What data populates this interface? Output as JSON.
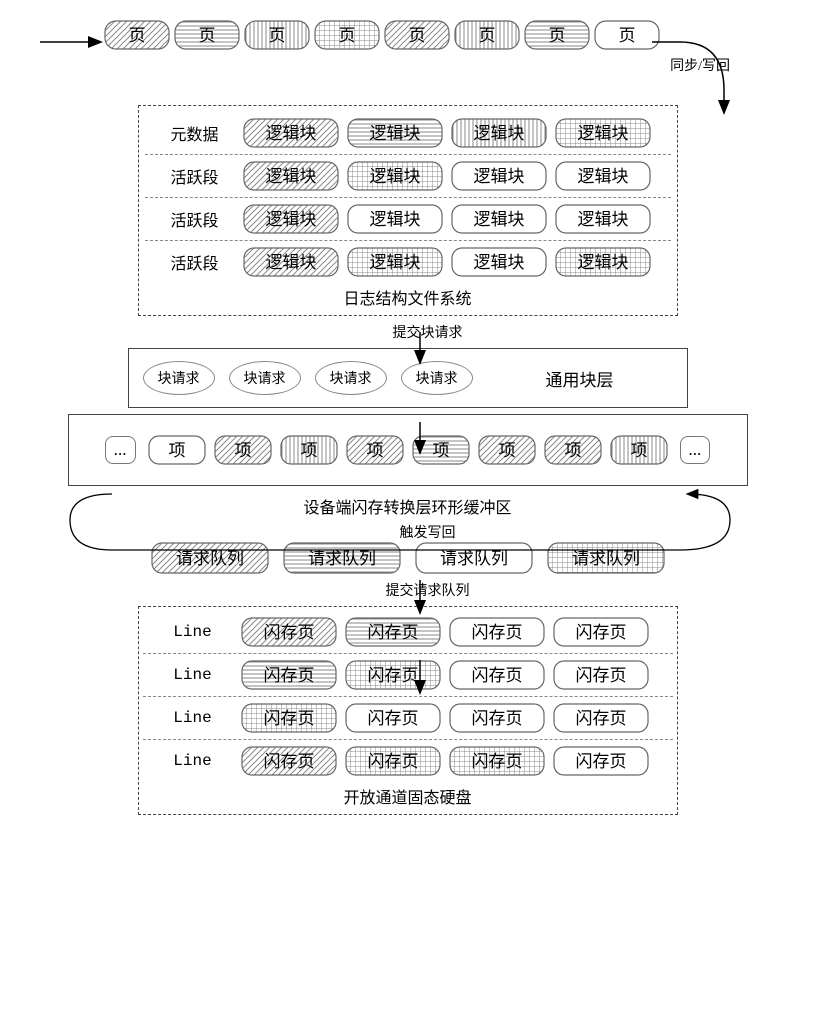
{
  "layer1": {
    "pages": [
      "页",
      "页",
      "页",
      "页",
      "页",
      "页",
      "页",
      "页"
    ],
    "page_patterns": [
      "diag",
      "hstripe",
      "vstripe",
      "grid",
      "diag",
      "vstripe",
      "hstripe",
      "plain"
    ],
    "sync_label": "同步/写回"
  },
  "layer2": {
    "rows": [
      {
        "label": "元数据",
        "cells": [
          "逻辑块",
          "逻辑块",
          "逻辑块",
          "逻辑块"
        ],
        "patterns": [
          "diag",
          "hstripe",
          "vstripe",
          "grid"
        ]
      },
      {
        "label": "活跃段",
        "cells": [
          "逻辑块",
          "逻辑块",
          "逻辑块",
          "逻辑块"
        ],
        "patterns": [
          "diag",
          "grid",
          "plain",
          "plain"
        ]
      },
      {
        "label": "活跃段",
        "cells": [
          "逻辑块",
          "逻辑块",
          "逻辑块",
          "逻辑块"
        ],
        "patterns": [
          "diag",
          "plain",
          "plain",
          "plain"
        ]
      },
      {
        "label": "活跃段",
        "cells": [
          "逻辑块",
          "逻辑块",
          "逻辑块",
          "逻辑块"
        ],
        "patterns": [
          "diag",
          "grid",
          "plain",
          "grid"
        ]
      }
    ],
    "caption": "日志结构文件系统",
    "arrow_label": "提交块请求"
  },
  "layer3": {
    "requests": [
      "块请求",
      "块请求",
      "块请求",
      "块请求"
    ],
    "label": "通用块层"
  },
  "layer4": {
    "left_dots": "...",
    "items": [
      "项",
      "项",
      "项",
      "项",
      "项",
      "项",
      "项",
      "项"
    ],
    "item_patterns": [
      "plain",
      "diag",
      "vstripe",
      "diag",
      "hstripe",
      "diag",
      "diag",
      "vstripe"
    ],
    "right_dots": "...",
    "caption": "设备端闪存转换层环形缓冲区",
    "arrow_label": "触发写回"
  },
  "layer5": {
    "queues": [
      "请求队列",
      "请求队列",
      "请求队列",
      "请求队列"
    ],
    "queue_patterns": [
      "diag",
      "hstripe",
      "plain",
      "grid"
    ],
    "arrow_label": "提交请求队列"
  },
  "layer6": {
    "rows": [
      {
        "label": "Line",
        "cells": [
          "闪存页",
          "闪存页",
          "闪存页",
          "闪存页"
        ],
        "patterns": [
          "diag",
          "hstripe",
          "plain",
          "plain"
        ]
      },
      {
        "label": "Line",
        "cells": [
          "闪存页",
          "闪存页",
          "闪存页",
          "闪存页"
        ],
        "patterns": [
          "hstripe",
          "grid",
          "plain",
          "plain"
        ]
      },
      {
        "label": "Line",
        "cells": [
          "闪存页",
          "闪存页",
          "闪存页",
          "闪存页"
        ],
        "patterns": [
          "grid",
          "plain",
          "plain",
          "plain"
        ]
      },
      {
        "label": "Line",
        "cells": [
          "闪存页",
          "闪存页",
          "闪存页",
          "闪存页"
        ],
        "patterns": [
          "diag",
          "grid",
          "grid",
          "plain"
        ]
      }
    ],
    "caption": "开放通道固态硬盘"
  },
  "colors": {
    "border": "#555555",
    "pattern": "#999999",
    "text": "#000000",
    "background": "#ffffff"
  }
}
